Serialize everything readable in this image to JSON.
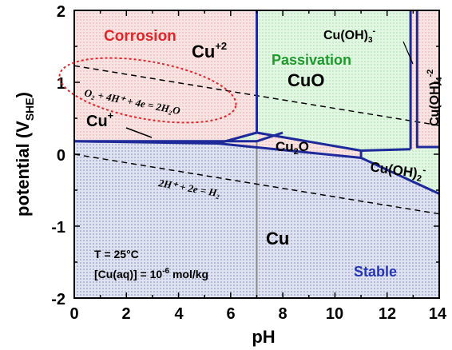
{
  "chart_data": {
    "type": "diagram",
    "xlabel": "pH",
    "ylabel_main": "potential (V",
    "ylabel_sub": "SHE",
    "ylabel_close": ")",
    "xlim": [
      0,
      14
    ],
    "ylim": [
      -2,
      2
    ],
    "x_ticks": [
      "0",
      "2",
      "4",
      "6",
      "8",
      "10",
      "12",
      "14"
    ],
    "y_ticks": [
      "2",
      "1",
      "0",
      "-1",
      "-2"
    ],
    "region_labels": {
      "corrosion": "Corrosion",
      "passivation": "Passivation",
      "stable": "Stable"
    },
    "species": {
      "cu2": {
        "base": "Cu",
        "sup": "+2"
      },
      "cuplus": {
        "base": "Cu",
        "sup": "+"
      },
      "cuo": "CuO",
      "cu2o": {
        "base": "Cu",
        "sub": "2",
        "tail": "O"
      },
      "cuoh2": {
        "base": "Cu(OH)",
        "sub": "2",
        "sup": "-"
      },
      "cuoh3": {
        "base": "Cu(OH)",
        "sub": "3",
        "sup": "-"
      },
      "cuoh4": {
        "base": "Cu(OH)",
        "sub": "4",
        "sup": "-2"
      },
      "cu": "Cu"
    },
    "reactions": {
      "oxygen": "O₂ + 4H⁺ + 4e = 2H₂O",
      "hydrogen": "2H⁺ + 2e = H₂"
    },
    "conditions": {
      "temperature": "T = 25°C",
      "concentration_base": "[Cu(aq)] = 10",
      "concentration_exp": "-6",
      "concentration_unit": " mol/kg"
    },
    "colors": {
      "corrosion": "#f7dada",
      "passivation": "#d8f5d8",
      "stable": "#c8cfe6",
      "boundary": "#1e2a9a",
      "corrosion_text": "#e0262a",
      "passivation_text": "#1f9a2c",
      "stable_text": "#2434b4",
      "ellipse": "#e0262a"
    },
    "boundaries": {
      "cu_cu2o_cuplus": [
        [
          0,
          0.18
        ],
        [
          5.5,
          0.15
        ],
        [
          11,
          -0.05
        ],
        [
          14,
          -0.55
        ]
      ],
      "cuplus_cu2": [
        [
          0,
          0.18
        ],
        [
          7,
          0.18
        ],
        [
          8,
          0.3
        ]
      ],
      "cu2_cuo": [
        [
          7,
          0.3
        ],
        [
          7,
          2
        ]
      ],
      "cu2o_cuo": [
        [
          5.5,
          0.15
        ],
        [
          7,
          0.3
        ],
        [
          11,
          0.05
        ],
        [
          12.9,
          0.07
        ]
      ],
      "cuo_cuoh3": [
        [
          12.9,
          0.07
        ],
        [
          12.9,
          2
        ]
      ],
      "cuoh3_cuoh4": [
        [
          13.15,
          2
        ],
        [
          13.15,
          0.1
        ],
        [
          14,
          0.1
        ]
      ],
      "cuoh2_top": [
        [
          11,
          0.05
        ],
        [
          12.9,
          0.07
        ],
        [
          14,
          0.1
        ]
      ],
      "cuoh2_left": [
        [
          11,
          0.05
        ],
        [
          11,
          -0.05
        ]
      ],
      "oxygen_line": [
        [
          0,
          1.23
        ],
        [
          14,
          0.4
        ]
      ],
      "hydrogen_line": [
        [
          0,
          0
        ],
        [
          14,
          -0.83
        ]
      ],
      "ph7_marker": 7
    }
  }
}
